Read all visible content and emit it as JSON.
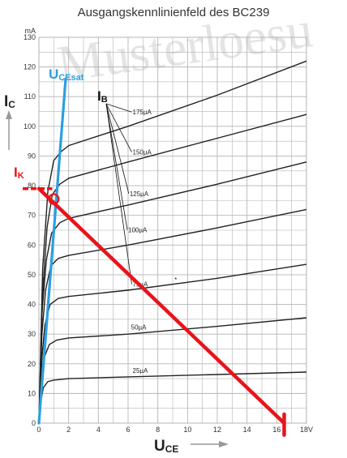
{
  "chart_data": {
    "type": "line",
    "title": "Ausgangskennlinienfeld des BC239",
    "watermark": "Musterloesu",
    "x_axis": {
      "label": "U",
      "label_sub": "CE",
      "unit_tick": "18V",
      "range": [
        0,
        18
      ],
      "ticks": [
        "0",
        "2",
        "4",
        "6",
        "8",
        "10",
        "12",
        "14",
        "16",
        "18V"
      ]
    },
    "y_axis": {
      "label": "I",
      "label_sub": "C",
      "unit": "mA",
      "range": [
        0,
        130
      ],
      "ticks": [
        "0",
        "10",
        "20",
        "30",
        "40",
        "50",
        "60",
        "70",
        "80",
        "90",
        "100",
        "110",
        "120",
        "130"
      ]
    },
    "grid": true,
    "series": [
      {
        "name": "25µA",
        "label_at": [
          6.3,
          17
        ],
        "points": [
          [
            0,
            0
          ],
          [
            0.15,
            8
          ],
          [
            0.3,
            12
          ],
          [
            0.6,
            14
          ],
          [
            1.0,
            14.5
          ],
          [
            2,
            15
          ],
          [
            6,
            15.6
          ],
          [
            12,
            16.4
          ],
          [
            18,
            17.2
          ]
        ]
      },
      {
        "name": "50µA",
        "label_at": [
          6.2,
          31.5
        ],
        "points": [
          [
            0,
            0
          ],
          [
            0.2,
            15
          ],
          [
            0.35,
            22
          ],
          [
            0.7,
            26.5
          ],
          [
            1.2,
            28
          ],
          [
            2,
            28.7
          ],
          [
            6,
            30
          ],
          [
            12,
            32.6
          ],
          [
            18,
            35.5
          ]
        ]
      },
      {
        "name": "75µA",
        "label_at": [
          6.3,
          46
        ],
        "points": [
          [
            0,
            0
          ],
          [
            0.2,
            22
          ],
          [
            0.4,
            33
          ],
          [
            0.75,
            40
          ],
          [
            1.3,
            42
          ],
          [
            2,
            42.7
          ],
          [
            6,
            44.8
          ],
          [
            12,
            48.8
          ],
          [
            18,
            53.5
          ]
        ]
      },
      {
        "name": "100µA",
        "label_at": [
          6.0,
          64.3
        ],
        "points": [
          [
            0,
            0
          ],
          [
            0.2,
            30
          ],
          [
            0.45,
            45
          ],
          [
            0.8,
            53
          ],
          [
            1.3,
            55.5
          ],
          [
            2,
            56.5
          ],
          [
            6,
            60
          ],
          [
            12,
            65.8
          ],
          [
            18,
            72
          ]
        ]
      },
      {
        "name": "125µA",
        "label_at": [
          6.1,
          76.5
        ],
        "points": [
          [
            0,
            0
          ],
          [
            0.2,
            37
          ],
          [
            0.5,
            55
          ],
          [
            0.85,
            64
          ],
          [
            1.4,
            67.5
          ],
          [
            2,
            69
          ],
          [
            6,
            73.5
          ],
          [
            12,
            80.5
          ],
          [
            18,
            88
          ]
        ]
      },
      {
        "name": "150µA",
        "label_at": [
          6.3,
          90.5
        ],
        "points": [
          [
            0,
            0
          ],
          [
            0.25,
            44
          ],
          [
            0.55,
            66
          ],
          [
            0.9,
            77
          ],
          [
            1.4,
            80.5
          ],
          [
            2,
            82.5
          ],
          [
            6,
            88
          ],
          [
            12,
            96
          ],
          [
            18,
            104
          ]
        ]
      },
      {
        "name": "175µA",
        "label_at": [
          6.3,
          104
        ],
        "points": [
          [
            0,
            0
          ],
          [
            0.25,
            52
          ],
          [
            0.6,
            78
          ],
          [
            1.0,
            88.5
          ],
          [
            1.5,
            91.5
          ],
          [
            2,
            93.5
          ],
          [
            6,
            100
          ],
          [
            12,
            110.5
          ],
          [
            18,
            122
          ]
        ]
      }
    ],
    "annotations": {
      "ib_label": "I",
      "ib_sub": "B",
      "ik_label": "I",
      "ik_sub": "K",
      "ucesat_label": "U",
      "ucesat_sub": "CEsat",
      "saturation_line": {
        "color": "#2b9fe0",
        "from": [
          0,
          0
        ],
        "to": [
          1.8,
          116
        ]
      },
      "load_line": {
        "color": "#e8141b",
        "from": [
          0,
          79
        ],
        "to": [
          16.5,
          0
        ]
      },
      "ik_marker": {
        "color": "#e8141b",
        "x_range": [
          0,
          0.9
        ],
        "y": 79
      },
      "uce_end_marker": {
        "x": 16.5,
        "y_range": [
          -4,
          3
        ]
      },
      "operating_point": {
        "x": 1.0,
        "y": 75.5
      },
      "asterisk": {
        "text": "*",
        "x": 9.2,
        "y": 47.5
      }
    }
  }
}
